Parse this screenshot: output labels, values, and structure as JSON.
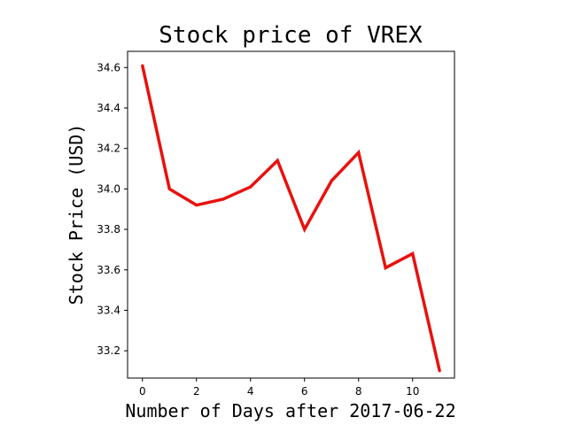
{
  "chart_data": {
    "type": "line",
    "title": "Stock price of VREX",
    "xlabel": "Number of Days after 2017-06-22",
    "ylabel": "Stock Price (USD)",
    "x": [
      0,
      1,
      2,
      3,
      4,
      5,
      6,
      7,
      8,
      9,
      10,
      11
    ],
    "series": [
      {
        "values": [
          34.61,
          34.0,
          33.92,
          33.95,
          34.01,
          34.14,
          33.8,
          34.04,
          34.18,
          33.61,
          33.68,
          33.1
        ]
      }
    ],
    "xlim": [
      -0.55,
      11.55
    ],
    "ylim": [
      33.065,
      34.68
    ],
    "xticks": [
      0,
      2,
      4,
      6,
      8,
      10
    ],
    "yticks": [
      33.2,
      33.4,
      33.6,
      33.8,
      34.0,
      34.2,
      34.4,
      34.6
    ],
    "ytick_labels": [
      "33.2",
      "33.4",
      "33.6",
      "33.8",
      "34.0",
      "34.2",
      "34.4",
      "34.6"
    ],
    "grid": false,
    "line_color": "#e8110e"
  }
}
